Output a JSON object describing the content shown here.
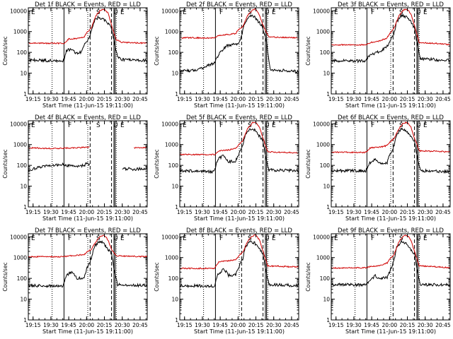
{
  "colors": {
    "events": "#000000",
    "lld": "#d00000",
    "axis": "#000000"
  },
  "common": {
    "ylabel": "Counts/sec",
    "xlabel": "Start Time (11-Jun-15 19:11:00)",
    "yticks": [
      "1",
      "10",
      "100",
      "1000",
      "10000"
    ],
    "xticks": [
      "19:15",
      "19:30",
      "19:45",
      "20:00",
      "20:15",
      "20:30",
      "20:45"
    ]
  },
  "chart_data": [
    {
      "type": "line",
      "title": "Det 1f BLACK = Events, RED = LLD",
      "xlabel": "Start Time (11-Jun-15 19:11:00)",
      "ylabel": "Counts/sec",
      "xlim": [
        "19:11",
        "20:51"
      ],
      "ylim": [
        1,
        14000
      ],
      "yscale": "log",
      "flags": [
        "E",
        "F",
        "S",
        "U",
        "E"
      ],
      "vlines_solid": [
        "19:41",
        "20:23",
        "20:24"
      ],
      "vlines_dashed": [
        "20:03",
        "20:21"
      ],
      "vlines_dotted": [
        "19:31",
        "20:01",
        "20:25"
      ],
      "gaps": [],
      "series": [
        {
          "name": "Events",
          "color": "#000000",
          "x": [
            "19:11",
            "19:41",
            "19:43",
            "19:48",
            "19:51",
            "19:55",
            "19:58",
            "20:00",
            "20:04",
            "20:06",
            "20:10",
            "20:14",
            "20:17",
            "20:21",
            "20:23",
            "20:26",
            "20:30",
            "20:51"
          ],
          "y": [
            42,
            40,
            120,
            150,
            90,
            100,
            240,
            300,
            1000,
            3000,
            5000,
            4000,
            3000,
            1500,
            350,
            60,
            45,
            40
          ]
        },
        {
          "name": "LLD",
          "color": "#d00000",
          "x": [
            "19:11",
            "19:41",
            "19:45",
            "19:52",
            "19:58",
            "20:00",
            "20:04",
            "20:08",
            "20:12",
            "20:15",
            "20:18",
            "20:21",
            "20:25",
            "20:30",
            "20:51"
          ],
          "y": [
            280,
            270,
            440,
            460,
            550,
            900,
            1500,
            6000,
            11000,
            12000,
            8000,
            2000,
            400,
            300,
            280
          ]
        }
      ]
    },
    {
      "type": "line",
      "title": "Det 2f BLACK = Events, RED = LLD",
      "xlabel": "Start Time (11-Jun-15 19:11:00)",
      "ylabel": "Counts/sec",
      "xlim": [
        "19:11",
        "20:51"
      ],
      "ylim": [
        1,
        14000
      ],
      "yscale": "log",
      "flags": [
        "E",
        "F",
        "S",
        "U",
        "E"
      ],
      "vlines_solid": [
        "19:41",
        "20:23",
        "20:24"
      ],
      "vlines_dashed": [
        "20:03",
        "20:21"
      ],
      "vlines_dotted": [
        "19:31",
        "20:01",
        "20:25"
      ],
      "gaps": [],
      "series": [
        {
          "name": "Events",
          "color": "#000000",
          "x": [
            "19:11",
            "19:25",
            "19:40",
            "19:45",
            "19:50",
            "19:58",
            "20:00",
            "20:02",
            "20:06",
            "20:10",
            "20:14",
            "20:17",
            "20:20",
            "20:24",
            "20:27",
            "20:51"
          ],
          "y": [
            12,
            14,
            30,
            100,
            200,
            250,
            280,
            400,
            3000,
            6000,
            5000,
            3000,
            2000,
            300,
            15,
            12
          ]
        },
        {
          "name": "LLD",
          "color": "#d00000",
          "x": [
            "19:11",
            "19:40",
            "19:44",
            "19:50",
            "19:58",
            "20:00",
            "20:04",
            "20:08",
            "20:12",
            "20:15",
            "20:18",
            "20:22",
            "20:26",
            "20:51"
          ],
          "y": [
            500,
            500,
            650,
            700,
            800,
            1200,
            1800,
            6000,
            11000,
            12000,
            6000,
            1500,
            550,
            500
          ]
        }
      ]
    },
    {
      "type": "line",
      "title": "Det 3f BLACK = Events, RED = LLD",
      "xlabel": "Start Time (11-Jun-15 19:11:00)",
      "ylabel": "Counts/sec",
      "xlim": [
        "19:11",
        "20:51"
      ],
      "ylim": [
        1,
        14000
      ],
      "yscale": "log",
      "flags": [
        "E",
        "F",
        "S",
        "U",
        "E"
      ],
      "vlines_solid": [
        "19:41",
        "20:23",
        "20:24"
      ],
      "vlines_dashed": [
        "20:03",
        "20:21"
      ],
      "vlines_dotted": [
        "19:31",
        "20:01",
        "20:25"
      ],
      "gaps": [],
      "series": [
        {
          "name": "Events",
          "color": "#000000",
          "x": [
            "19:11",
            "19:40",
            "19:43",
            "19:48",
            "19:52",
            "19:58",
            "20:00",
            "20:04",
            "20:06",
            "20:10",
            "20:14",
            "20:17",
            "20:21",
            "20:23",
            "20:26",
            "20:51"
          ],
          "y": [
            40,
            38,
            70,
            90,
            110,
            200,
            320,
            900,
            3000,
            6000,
            5000,
            3500,
            1500,
            300,
            50,
            40
          ]
        },
        {
          "name": "LLD",
          "color": "#d00000",
          "x": [
            "19:11",
            "19:40",
            "19:44",
            "19:52",
            "19:58",
            "20:00",
            "20:04",
            "20:08",
            "20:12",
            "20:15",
            "20:18",
            "20:21",
            "20:25",
            "20:51"
          ],
          "y": [
            230,
            230,
            300,
            360,
            500,
            800,
            1500,
            6000,
            11000,
            12000,
            7000,
            2000,
            300,
            240
          ]
        }
      ]
    },
    {
      "type": "line",
      "title": "Det 4f BLACK = Events, RED = LLD",
      "xlabel": "Start Time (11-Jun-15 19:11:00)",
      "ylabel": "Counts/sec",
      "xlim": [
        "19:11",
        "20:51"
      ],
      "ylim": [
        1,
        14000
      ],
      "yscale": "log",
      "flags": [
        "E",
        "F",
        "S",
        "U",
        "E"
      ],
      "vlines_solid": [
        "19:41",
        "20:23",
        "20:24"
      ],
      "vlines_dashed": [
        "20:03",
        "20:21"
      ],
      "vlines_dotted": [
        "19:31",
        "20:01",
        "20:25"
      ],
      "gaps": [
        [
          "20:03",
          "20:24"
        ]
      ],
      "series": [
        {
          "name": "Events",
          "color": "#000000",
          "x": [
            "19:11",
            "19:20",
            "19:30",
            "19:40",
            "19:50",
            "19:58",
            "20:00",
            "20:03",
            "20:24",
            "20:30",
            "20:40",
            "20:51"
          ],
          "y": [
            60,
            80,
            100,
            110,
            85,
            100,
            130,
            110,
            null,
            70,
            65,
            70
          ]
        },
        {
          "name": "LLD",
          "color": "#d00000",
          "x": [
            "19:11",
            "19:30",
            "19:50",
            "20:03",
            "20:24",
            "20:40",
            "20:51"
          ],
          "y": [
            700,
            650,
            700,
            750,
            null,
            700,
            700
          ]
        }
      ]
    },
    {
      "type": "line",
      "title": "Det 5f BLACK = Events, RED = LLD",
      "xlabel": "Start Time (11-Jun-15 19:11:00)",
      "ylabel": "Counts/sec",
      "xlim": [
        "19:11",
        "20:51"
      ],
      "ylim": [
        1,
        14000
      ],
      "yscale": "log",
      "flags": [
        "E",
        "F",
        "S",
        "U",
        "E"
      ],
      "vlines_solid": [
        "19:41",
        "20:23",
        "20:24"
      ],
      "vlines_dashed": [
        "20:03",
        "20:21"
      ],
      "vlines_dotted": [
        "19:31",
        "20:01",
        "20:25"
      ],
      "gaps": [],
      "series": [
        {
          "name": "Events",
          "color": "#000000",
          "x": [
            "19:11",
            "19:40",
            "19:43",
            "19:48",
            "19:52",
            "19:58",
            "20:00",
            "20:04",
            "20:06",
            "20:10",
            "20:14",
            "20:17",
            "20:21",
            "20:23",
            "20:26",
            "20:51"
          ],
          "y": [
            55,
            50,
            200,
            300,
            150,
            160,
            280,
            900,
            3000,
            6000,
            5000,
            3000,
            1500,
            300,
            60,
            55
          ]
        },
        {
          "name": "LLD",
          "color": "#d00000",
          "x": [
            "19:11",
            "19:40",
            "19:44",
            "19:52",
            "19:58",
            "20:00",
            "20:04",
            "20:08",
            "20:12",
            "20:15",
            "20:18",
            "20:21",
            "20:25",
            "20:51"
          ],
          "y": [
            330,
            330,
            500,
            550,
            650,
            900,
            1600,
            6000,
            11000,
            12000,
            7000,
            2000,
            450,
            400
          ]
        }
      ]
    },
    {
      "type": "line",
      "title": "Det 6f BLACK = Events, RED = LLD",
      "xlabel": "Start Time (11-Jun-15 19:11:00)",
      "ylabel": "Counts/sec",
      "xlim": [
        "19:11",
        "20:51"
      ],
      "ylim": [
        1,
        14000
      ],
      "yscale": "log",
      "flags": [
        "E",
        "F",
        "S",
        "U",
        "E"
      ],
      "vlines_solid": [
        "19:41",
        "20:23",
        "20:24"
      ],
      "vlines_dashed": [
        "20:03",
        "20:21"
      ],
      "vlines_dotted": [
        "19:31",
        "20:01",
        "20:25"
      ],
      "gaps": [],
      "series": [
        {
          "name": "Events",
          "color": "#000000",
          "x": [
            "19:11",
            "19:40",
            "19:43",
            "19:48",
            "19:52",
            "19:58",
            "20:00",
            "20:04",
            "20:06",
            "20:10",
            "20:14",
            "20:17",
            "20:21",
            "20:23",
            "20:26",
            "20:51"
          ],
          "y": [
            55,
            55,
            130,
            200,
            120,
            130,
            300,
            900,
            3000,
            6000,
            5000,
            3000,
            1500,
            300,
            55,
            50
          ]
        },
        {
          "name": "LLD",
          "color": "#d00000",
          "x": [
            "19:11",
            "19:40",
            "19:44",
            "19:52",
            "19:58",
            "20:00",
            "20:04",
            "20:08",
            "20:12",
            "20:15",
            "20:18",
            "20:21",
            "20:25",
            "20:51"
          ],
          "y": [
            430,
            420,
            700,
            750,
            900,
            1300,
            2000,
            6000,
            11000,
            12000,
            7000,
            2000,
            500,
            450
          ]
        }
      ]
    },
    {
      "type": "line",
      "title": "Det 7f BLACK = Events, RED = LLD",
      "xlabel": "Start Time (11-Jun-15 19:11:00)",
      "ylabel": "Counts/sec",
      "xlim": [
        "19:11",
        "20:51"
      ],
      "ylim": [
        1,
        14000
      ],
      "yscale": "log",
      "flags": [
        "E",
        "F",
        "S",
        "U",
        "E"
      ],
      "vlines_solid": [
        "19:41",
        "20:23",
        "20:24"
      ],
      "vlines_dashed": [
        "20:03",
        "20:21"
      ],
      "vlines_dotted": [
        "19:31",
        "20:01",
        "20:25"
      ],
      "gaps": [],
      "series": [
        {
          "name": "Events",
          "color": "#000000",
          "x": [
            "19:11",
            "19:40",
            "19:43",
            "19:48",
            "19:52",
            "19:58",
            "20:00",
            "20:04",
            "20:06",
            "20:10",
            "20:14",
            "20:17",
            "20:21",
            "20:23",
            "20:26",
            "20:51"
          ],
          "y": [
            45,
            42,
            150,
            200,
            100,
            110,
            280,
            900,
            3000,
            6000,
            5000,
            3000,
            1500,
            300,
            50,
            45
          ]
        },
        {
          "name": "LLD",
          "color": "#d00000",
          "x": [
            "19:11",
            "19:40",
            "19:44",
            "19:52",
            "19:58",
            "20:00",
            "20:04",
            "20:08",
            "20:12",
            "20:15",
            "20:18",
            "20:21",
            "20:25",
            "20:51"
          ],
          "y": [
            1100,
            1100,
            1200,
            1300,
            1400,
            1800,
            2500,
            6000,
            11000,
            12000,
            7000,
            2500,
            1200,
            1100
          ]
        }
      ]
    },
    {
      "type": "line",
      "title": "Det 8f BLACK = Events, RED = LLD",
      "xlabel": "Start Time (11-Jun-15 19:11:00)",
      "ylabel": "Counts/sec",
      "xlim": [
        "19:11",
        "20:51"
      ],
      "ylim": [
        1,
        14000
      ],
      "yscale": "log",
      "flags": [
        "E",
        "F",
        "S",
        "U",
        "E"
      ],
      "vlines_solid": [
        "19:41",
        "20:23",
        "20:24"
      ],
      "vlines_dashed": [
        "20:03",
        "20:21"
      ],
      "vlines_dotted": [
        "19:31",
        "20:01",
        "20:25"
      ],
      "gaps": [],
      "series": [
        {
          "name": "Events",
          "color": "#000000",
          "x": [
            "19:11",
            "19:40",
            "19:43",
            "19:48",
            "19:52",
            "19:58",
            "20:00",
            "20:04",
            "20:06",
            "20:10",
            "20:14",
            "20:17",
            "20:21",
            "20:23",
            "20:26",
            "20:51"
          ],
          "y": [
            45,
            42,
            150,
            300,
            140,
            150,
            300,
            900,
            3000,
            6000,
            5000,
            3000,
            1500,
            300,
            50,
            45
          ]
        },
        {
          "name": "LLD",
          "color": "#d00000",
          "x": [
            "19:11",
            "19:40",
            "19:44",
            "19:52",
            "19:58",
            "20:00",
            "20:04",
            "20:08",
            "20:12",
            "20:15",
            "20:18",
            "20:21",
            "20:25",
            "20:51"
          ],
          "y": [
            300,
            300,
            650,
            700,
            800,
            1100,
            1800,
            6000,
            11000,
            12000,
            7000,
            2000,
            400,
            350
          ]
        }
      ]
    },
    {
      "type": "line",
      "title": "Det 9f BLACK = Events, RED = LLD",
      "xlabel": "Start Time (11-Jun-15 19:11:00)",
      "ylabel": "Counts/sec",
      "xlim": [
        "19:11",
        "20:51"
      ],
      "ylim": [
        1,
        14000
      ],
      "yscale": "log",
      "flags": [
        "E",
        "F",
        "S",
        "U",
        "E"
      ],
      "vlines_solid": [
        "19:41",
        "20:23",
        "20:24"
      ],
      "vlines_dashed": [
        "20:03",
        "20:21"
      ],
      "vlines_dotted": [
        "19:31",
        "20:01",
        "20:25"
      ],
      "gaps": [],
      "series": [
        {
          "name": "Events",
          "color": "#000000",
          "x": [
            "19:11",
            "19:40",
            "19:43",
            "19:48",
            "19:52",
            "19:58",
            "20:00",
            "20:04",
            "20:06",
            "20:10",
            "20:14",
            "20:17",
            "20:21",
            "20:23",
            "20:26",
            "20:51"
          ],
          "y": [
            50,
            48,
            80,
            130,
            100,
            110,
            200,
            800,
            3000,
            6000,
            5000,
            3000,
            1500,
            300,
            50,
            50
          ]
        },
        {
          "name": "LLD",
          "color": "#d00000",
          "x": [
            "19:11",
            "19:40",
            "19:44",
            "19:52",
            "19:58",
            "20:00",
            "20:04",
            "20:08",
            "20:12",
            "20:15",
            "20:18",
            "20:21",
            "20:25",
            "20:51"
          ],
          "y": [
            320,
            320,
            380,
            420,
            550,
            800,
            1500,
            6000,
            11000,
            12000,
            7000,
            2000,
            400,
            330
          ]
        }
      ]
    }
  ]
}
